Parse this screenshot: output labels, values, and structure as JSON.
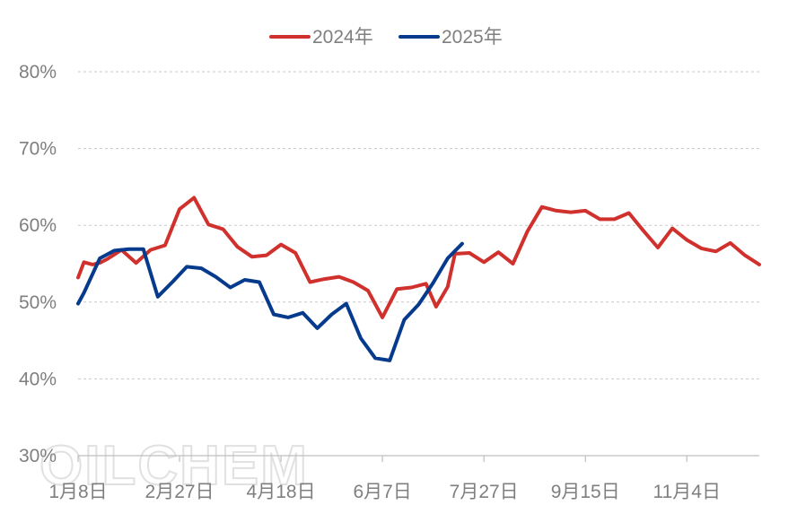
{
  "chart_data": {
    "type": "line",
    "title": "",
    "xlabel": "",
    "ylabel": "",
    "ylim": [
      30,
      80
    ],
    "y_unit": "%",
    "y_ticks": [
      "30%",
      "40%",
      "50%",
      "60%",
      "70%",
      "80%"
    ],
    "y_tick_values": [
      30,
      40,
      50,
      60,
      70,
      80
    ],
    "x_ticks": [
      "1月8日",
      "2月27日",
      "4月18日",
      "6月7日",
      "7月27日",
      "9月15日",
      "11月4日"
    ],
    "x_tick_weeks": [
      0,
      7,
      14,
      21,
      28,
      35,
      42
    ],
    "x_range_weeks": [
      0,
      47
    ],
    "grid": true,
    "legend_position": "top-center",
    "watermark": "OILCHEM",
    "series": [
      {
        "name": "2024年",
        "color": "#d0312d",
        "weeks": [
          0,
          0.4,
          1,
          1.5,
          2,
          3,
          4,
          5,
          6,
          7,
          8,
          9,
          10,
          11,
          12,
          13,
          14,
          15,
          16,
          17,
          18,
          19,
          20,
          21,
          22,
          23,
          24,
          24.7,
          25.5,
          26,
          27,
          28,
          29,
          30,
          31,
          32,
          33,
          34,
          35,
          36,
          37,
          38,
          39,
          40,
          41,
          42,
          43,
          44,
          45,
          46,
          47
        ],
        "values": [
          53.2,
          55.2,
          54.9,
          55.1,
          55.6,
          56.8,
          55.1,
          56.8,
          57.4,
          62.1,
          63.6,
          60.1,
          59.5,
          57.2,
          55.9,
          56.1,
          57.5,
          56.4,
          52.6,
          53.0,
          53.3,
          52.6,
          51.5,
          48.0,
          51.7,
          51.9,
          52.4,
          49.4,
          52.0,
          56.3,
          56.4,
          55.2,
          56.5,
          55.0,
          59.2,
          62.4,
          61.9,
          61.7,
          61.9,
          60.8,
          60.8,
          61.6,
          59.3,
          57.1,
          59.6,
          58.1,
          57.0,
          56.6,
          57.7,
          56.1,
          54.9
        ]
      },
      {
        "name": "2025年",
        "color": "#053a8c",
        "weeks": [
          0,
          0.4,
          1.5,
          2.5,
          3.5,
          4.5,
          5.5,
          6.5,
          7.5,
          8.5,
          9.5,
          10.5,
          11.5,
          12.5,
          13.5,
          14.5,
          15.5,
          16.5,
          17.5,
          18.5,
          19.5,
          20.5,
          21.5,
          22.5,
          23.5,
          24.5,
          25.5,
          26.5
        ],
        "values": [
          49.8,
          51.2,
          55.7,
          56.7,
          56.9,
          56.9,
          50.7,
          52.6,
          54.6,
          54.4,
          53.3,
          51.9,
          52.9,
          52.6,
          48.4,
          48.0,
          48.6,
          46.6,
          48.4,
          49.8,
          45.3,
          42.7,
          42.4,
          47.7,
          49.7,
          52.5,
          55.7,
          57.6
        ]
      }
    ]
  }
}
